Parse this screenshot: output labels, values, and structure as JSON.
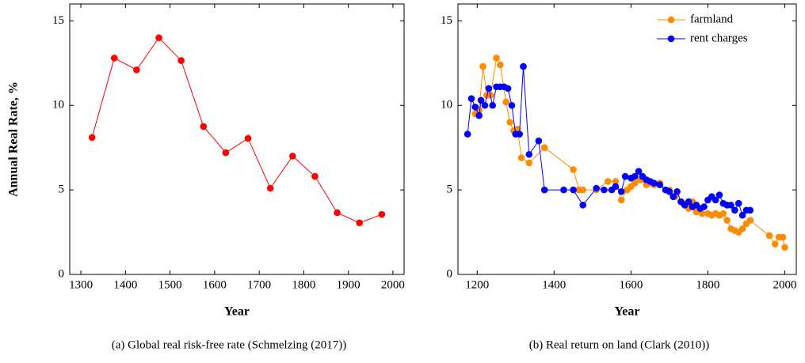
{
  "chart_data": [
    {
      "type": "line",
      "caption": "(a) Global real risk-free rate (Schmelzing (2017))",
      "xlabel": "Year",
      "ylabel": "Annual Real Rate, %",
      "color": "#ff0000",
      "x": [
        1325,
        1375,
        1425,
        1475,
        1525,
        1575,
        1625,
        1675,
        1725,
        1775,
        1825,
        1875,
        1925,
        1975
      ],
      "values": [
        8.1,
        12.8,
        12.1,
        14.0,
        12.65,
        8.75,
        7.2,
        8.05,
        5.1,
        7.0,
        5.8,
        3.65,
        3.05,
        3.55
      ],
      "xlim": [
        1275,
        2025
      ],
      "xticks": [
        1300,
        1400,
        1500,
        1600,
        1700,
        1800,
        1900,
        2000
      ],
      "ylim": [
        0,
        16
      ],
      "yticks": [
        0,
        5,
        10,
        15
      ]
    },
    {
      "type": "line",
      "caption": "(b) Real return on land (Clark (2010))",
      "xlabel": "Year",
      "legend": "upper right",
      "series": [
        {
          "name": "farmland",
          "color": "#ff8c00",
          "x": [
            1195,
            1205,
            1215,
            1225,
            1235,
            1250,
            1260,
            1275,
            1285,
            1295,
            1305,
            1315,
            1335,
            1375,
            1450,
            1465,
            1475,
            1510,
            1540,
            1560,
            1575,
            1590,
            1600,
            1610,
            1625,
            1640,
            1650,
            1660,
            1675,
            1690,
            1700,
            1715,
            1735,
            1750,
            1760,
            1770,
            1785,
            1800,
            1810,
            1820,
            1830,
            1840,
            1850,
            1860,
            1870,
            1880,
            1890,
            1900,
            1910,
            1960,
            1975,
            1985,
            1995,
            2000
          ],
          "values": [
            9.5,
            9.7,
            12.3,
            10.6,
            10.6,
            12.8,
            12.4,
            10.2,
            9.0,
            8.5,
            8.6,
            6.9,
            6.6,
            7.5,
            6.2,
            5.0,
            5.0,
            5.0,
            5.5,
            5.5,
            4.4,
            5.0,
            5.2,
            5.4,
            5.6,
            5.3,
            5.4,
            5.3,
            5.4,
            5.0,
            5.0,
            4.6,
            4.2,
            3.9,
            4.3,
            3.7,
            3.6,
            3.6,
            3.5,
            3.6,
            3.5,
            3.6,
            3.2,
            2.7,
            2.6,
            2.5,
            2.7,
            3.0,
            3.2,
            2.3,
            1.8,
            2.2,
            2.2,
            1.6
          ]
        },
        {
          "name": "rent charges",
          "color": "#0000ff",
          "x": [
            1175,
            1185,
            1195,
            1205,
            1210,
            1220,
            1230,
            1240,
            1250,
            1260,
            1270,
            1280,
            1290,
            1300,
            1310,
            1320,
            1335,
            1360,
            1375,
            1425,
            1450,
            1475,
            1510,
            1530,
            1550,
            1560,
            1575,
            1585,
            1600,
            1610,
            1620,
            1630,
            1640,
            1650,
            1660,
            1675,
            1690,
            1700,
            1710,
            1720,
            1730,
            1740,
            1750,
            1760,
            1770,
            1780,
            1790,
            1800,
            1810,
            1820,
            1830,
            1840,
            1850,
            1860,
            1870,
            1880,
            1890,
            1900,
            1910
          ],
          "values": [
            8.3,
            10.4,
            9.9,
            9.4,
            10.3,
            10.0,
            11.0,
            10.0,
            11.1,
            11.1,
            11.1,
            11.0,
            10.0,
            8.3,
            8.3,
            12.3,
            7.1,
            7.9,
            5.0,
            5.0,
            5.0,
            4.1,
            5.1,
            5.0,
            5.0,
            5.2,
            4.9,
            5.8,
            5.7,
            5.8,
            6.1,
            5.8,
            5.6,
            5.5,
            5.4,
            5.3,
            5.0,
            4.9,
            4.6,
            4.9,
            4.3,
            4.1,
            4.3,
            4.0,
            4.1,
            3.9,
            4.0,
            4.4,
            4.6,
            4.4,
            4.7,
            4.2,
            4.1,
            4.1,
            3.8,
            4.2,
            3.5,
            3.8,
            3.8
          ]
        }
      ],
      "xlim": [
        1150,
        2030
      ],
      "xticks": [
        1200,
        1400,
        1600,
        1800,
        2000
      ],
      "ylim": [
        0,
        16
      ],
      "yticks": [
        0,
        5,
        10,
        15
      ]
    }
  ]
}
